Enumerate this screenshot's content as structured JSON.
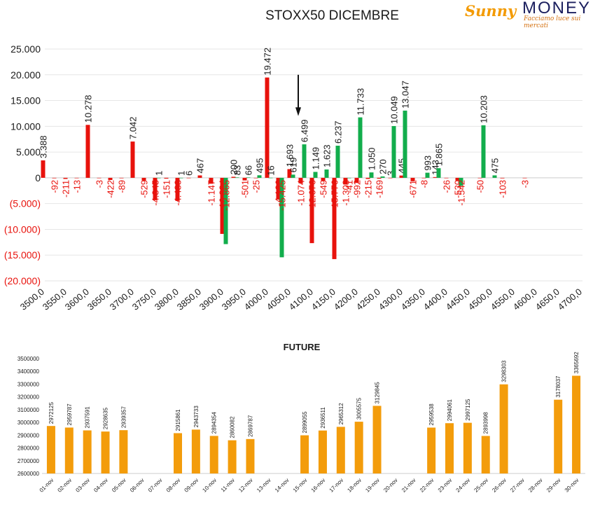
{
  "logo": {
    "sunny": "Sunny",
    "money": "MONEY",
    "tagline": "Facciamo luce sui mercati"
  },
  "chart_data": [
    {
      "type": "bar",
      "title": "STOXX50 DICEMBRE",
      "ylim": [
        -20000,
        25000
      ],
      "yticks": [
        "(20.000)",
        "(15.000)",
        "(10.000)",
        "(5.000)",
        "0",
        "5.000",
        "10.000",
        "15.000",
        "20.000",
        "25.000"
      ],
      "ytick_values": [
        -20000,
        -15000,
        -10000,
        -5000,
        0,
        5000,
        10000,
        15000,
        20000,
        25000
      ],
      "xticks": [
        "3500,0",
        "3550,0",
        "3600,0",
        "3650,0",
        "3700,0",
        "3750,0",
        "3800,0",
        "3850,0",
        "3900,0",
        "3950,0",
        "4000,0",
        "4050,0",
        "4100,0",
        "4150,0",
        "4200,0",
        "4250,0",
        "4300,0",
        "4350,0",
        "4400,0",
        "4450,0",
        "4500,0",
        "4550,0",
        "4600,0",
        "4650,0",
        "4700,0"
      ],
      "xtick_values": [
        3500,
        3550,
        3600,
        3650,
        3700,
        3750,
        3800,
        3850,
        3900,
        3950,
        4000,
        4050,
        4100,
        4150,
        4200,
        4250,
        4300,
        4350,
        4400,
        4450,
        4500,
        4550,
        4600,
        4650,
        4700
      ],
      "marker_strike": 4075,
      "colors": {
        "red": "#e8120c",
        "green": "#12ad4c"
      },
      "series": [
        {
          "color": "red",
          "points": [
            {
              "x": 3500,
              "value": 3388,
              "label": "3.388"
            },
            {
              "x": 3525,
              "value": -92,
              "label": "-92"
            },
            {
              "x": 3550,
              "value": -211,
              "label": "-211"
            },
            {
              "x": 3575,
              "value": -13,
              "label": "-13"
            },
            {
              "x": 3600,
              "value": 10278,
              "label": "10.278"
            },
            {
              "x": 3625,
              "value": -3,
              "label": "-3"
            },
            {
              "x": 3650,
              "value": -422,
              "label": "-422"
            },
            {
              "x": 3675,
              "value": -89,
              "label": "-89"
            },
            {
              "x": 3700,
              "value": 7042,
              "label": "7.042"
            },
            {
              "x": 3725,
              "value": -529,
              "label": "-529"
            },
            {
              "x": 3750,
              "value": -4345,
              "label": "-4.345"
            },
            {
              "x": 3775,
              "value": -151,
              "label": "-151"
            },
            {
              "x": 3800,
              "value": -4483,
              "label": "-4.483"
            },
            {
              "x": 3825,
              "value": 6,
              "label": "6"
            },
            {
              "x": 3850,
              "value": 467,
              "label": "467"
            },
            {
              "x": 3875,
              "value": -1147,
              "label": "-1.147"
            },
            {
              "x": 3900,
              "value": -10884,
              "label": "-10.884"
            },
            {
              "x": 3925,
              "value": 200,
              "label": "200"
            },
            {
              "x": 3950,
              "value": -501,
              "label": "-501"
            },
            {
              "x": 3975,
              "value": -25,
              "label": "-25"
            },
            {
              "x": 4000,
              "value": 19472,
              "label": "19.472"
            },
            {
              "x": 4025,
              "value": -4126,
              "label": "-4.126"
            },
            {
              "x": 4050,
              "value": 1693,
              "label": "1.693"
            },
            {
              "x": 4075,
              "value": -1074,
              "label": "-1.074"
            },
            {
              "x": 4100,
              "value": -12676,
              "label": "-12.676"
            },
            {
              "x": 4125,
              "value": -549,
              "label": "-549"
            },
            {
              "x": 4150,
              "value": -15776,
              "label": "-15.776"
            },
            {
              "x": 4175,
              "value": -1308,
              "label": "-1.308"
            },
            {
              "x": 4200,
              "value": -992,
              "label": "-992"
            },
            {
              "x": 4225,
              "value": -215,
              "label": "-215"
            },
            {
              "x": 4250,
              "value": -169,
              "label": "-169"
            },
            {
              "x": 4275,
              "value": 3,
              "label": "3"
            },
            {
              "x": 4300,
              "value": 445,
              "label": "445"
            },
            {
              "x": 4325,
              "value": -671,
              "label": "-671"
            },
            {
              "x": 4350,
              "value": -8,
              "label": "-8"
            },
            {
              "x": 4375,
              "value": 143,
              "label": "143"
            },
            {
              "x": 4400,
              "value": -26,
              "label": "-26"
            },
            {
              "x": 4425,
              "value": -530,
              "label": "-530"
            },
            {
              "x": 4475,
              "value": -50,
              "label": "-50"
            },
            {
              "x": 4525,
              "value": -103,
              "label": "-103"
            },
            {
              "x": 4575,
              "value": -3,
              "label": "-3"
            }
          ]
        },
        {
          "color": "green",
          "points": [
            {
              "x": 3750,
              "value": 1,
              "label": "1"
            },
            {
              "x": 3800,
              "value": 1,
              "label": "1"
            },
            {
              "x": 3900,
              "value": -12865,
              "label": "-12.865"
            },
            {
              "x": 3925,
              "value": 83,
              "label": "83"
            },
            {
              "x": 3950,
              "value": 66,
              "label": "66"
            },
            {
              "x": 3975,
              "value": 495,
              "label": "495"
            },
            {
              "x": 4000,
              "value": 16,
              "label": "16"
            },
            {
              "x": 4025,
              "value": -15425,
              "label": "-15.425"
            },
            {
              "x": 4050,
              "value": 619,
              "label": "619"
            },
            {
              "x": 4075,
              "value": 6499,
              "label": "6.499"
            },
            {
              "x": 4100,
              "value": 1149,
              "label": "1.149"
            },
            {
              "x": 4125,
              "value": 1623,
              "label": "1.623"
            },
            {
              "x": 4150,
              "value": 6237,
              "label": "6.237"
            },
            {
              "x": 4175,
              "value": -41,
              "label": "-41"
            },
            {
              "x": 4200,
              "value": 11733,
              "label": "11.733"
            },
            {
              "x": 4225,
              "value": 1050,
              "label": "1.050"
            },
            {
              "x": 4250,
              "value": 270,
              "label": "270"
            },
            {
              "x": 4275,
              "value": 10049,
              "label": "10.049"
            },
            {
              "x": 4300,
              "value": 13047,
              "label": "13.047"
            },
            {
              "x": 4350,
              "value": 993,
              "label": "993"
            },
            {
              "x": 4375,
              "value": 1865,
              "label": "1.865"
            },
            {
              "x": 4425,
              "value": -1542,
              "label": "-1.542"
            },
            {
              "x": 4475,
              "value": 10203,
              "label": "10.203"
            },
            {
              "x": 4500,
              "value": 475,
              "label": "475"
            }
          ]
        }
      ]
    },
    {
      "type": "bar",
      "title": "FUTURE",
      "ylim": [
        2600000,
        3500000
      ],
      "yticks": [
        "2600000",
        "2700000",
        "2800000",
        "2900000",
        "3000000",
        "3100000",
        "3200000",
        "3300000",
        "3400000",
        "3500000"
      ],
      "ytick_values": [
        2600000,
        2700000,
        2800000,
        2900000,
        3000000,
        3100000,
        3200000,
        3300000,
        3400000,
        3500000
      ],
      "color": "#f39c0b",
      "categories": [
        "01-nov",
        "02-nov",
        "03-nov",
        "04-nov",
        "05-nov",
        "06-nov",
        "07-nov",
        "08-nov",
        "09-nov",
        "10-nov",
        "11-nov",
        "12-nov",
        "13-nov",
        "14-nov",
        "15-nov",
        "16-nov",
        "17-nov",
        "18-nov",
        "19-nov",
        "20-nov",
        "21-nov",
        "22-nov",
        "23-nov",
        "24-nov",
        "25-nov",
        "26-nov",
        "27-nov",
        "28-nov",
        "29-nov",
        "30-nov"
      ],
      "values": [
        2972125,
        2959787,
        2937591,
        2928635,
        2939357,
        null,
        null,
        2915861,
        2943733,
        2894354,
        2860082,
        2869787,
        null,
        null,
        2899055,
        2936511,
        2965312,
        3005575,
        3129845,
        null,
        null,
        2959538,
        2994061,
        2997125,
        2893998,
        3298303,
        null,
        null,
        3178037,
        3365692
      ],
      "labels": [
        "2972125",
        "2959787",
        "2937591",
        "2928635",
        "2939357",
        "",
        "",
        "2915861",
        "2943733",
        "2894354",
        "2860082",
        "2869787",
        "",
        "",
        "2899055",
        "2936511",
        "2965312",
        "3005575",
        "3129845",
        "",
        "",
        "2959538",
        "2994061",
        "2997125",
        "2893998",
        "3298303",
        "",
        "",
        "3178037",
        "3365692"
      ]
    }
  ]
}
